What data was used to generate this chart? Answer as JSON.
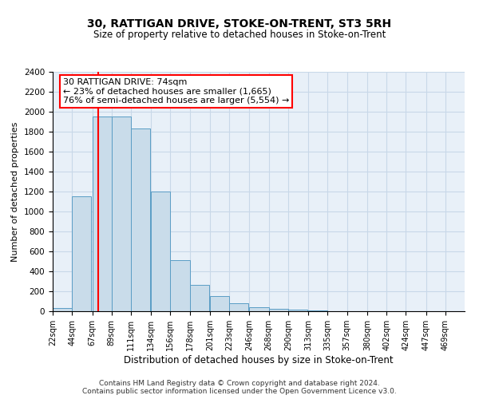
{
  "title1": "30, RATTIGAN DRIVE, STOKE-ON-TRENT, ST3 5RH",
  "title2": "Size of property relative to detached houses in Stoke-on-Trent",
  "xlabel": "Distribution of detached houses by size in Stoke-on-Trent",
  "ylabel": "Number of detached properties",
  "annotation_line1": "30 RATTIGAN DRIVE: 74sqm",
  "annotation_line2": "← 23% of detached houses are smaller (1,665)",
  "annotation_line3": "76% of semi-detached houses are larger (5,554) →",
  "footer1": "Contains HM Land Registry data © Crown copyright and database right 2024.",
  "footer2": "Contains public sector information licensed under the Open Government Licence v3.0.",
  "bar_left_edges": [
    22,
    44,
    67,
    89,
    111,
    134,
    156,
    178,
    201,
    223,
    246,
    268,
    290,
    313,
    335,
    357,
    380,
    402,
    424,
    447
  ],
  "bar_heights": [
    30,
    1150,
    1950,
    1950,
    1830,
    1200,
    510,
    265,
    155,
    80,
    40,
    25,
    15,
    5,
    3,
    2,
    1,
    1,
    1,
    1
  ],
  "bin_width": 22,
  "tick_labels": [
    "22sqm",
    "44sqm",
    "67sqm",
    "89sqm",
    "111sqm",
    "134sqm",
    "156sqm",
    "178sqm",
    "201sqm",
    "223sqm",
    "246sqm",
    "268sqm",
    "290sqm",
    "313sqm",
    "335sqm",
    "357sqm",
    "380sqm",
    "402sqm",
    "424sqm",
    "447sqm",
    "469sqm"
  ],
  "tick_positions": [
    22,
    44,
    67,
    89,
    111,
    134,
    156,
    178,
    201,
    223,
    246,
    268,
    290,
    313,
    335,
    357,
    380,
    402,
    424,
    447,
    469
  ],
  "bar_color": "#c9dcea",
  "bar_edge_color": "#5a9dc5",
  "red_line_x": 74,
  "ylim": [
    0,
    2400
  ],
  "yticks": [
    0,
    200,
    400,
    600,
    800,
    1000,
    1200,
    1400,
    1600,
    1800,
    2000,
    2200,
    2400
  ],
  "annotation_box_color": "white",
  "annotation_box_edge_color": "red",
  "grid_color": "#c8d8e8",
  "background_color": "#e8f0f8",
  "title1_fontsize": 10,
  "title2_fontsize": 8.5,
  "ylabel_fontsize": 8,
  "xlabel_fontsize": 8.5,
  "tick_fontsize": 7,
  "ytick_fontsize": 7.5,
  "footer_fontsize": 6.5,
  "ann_fontsize": 8
}
